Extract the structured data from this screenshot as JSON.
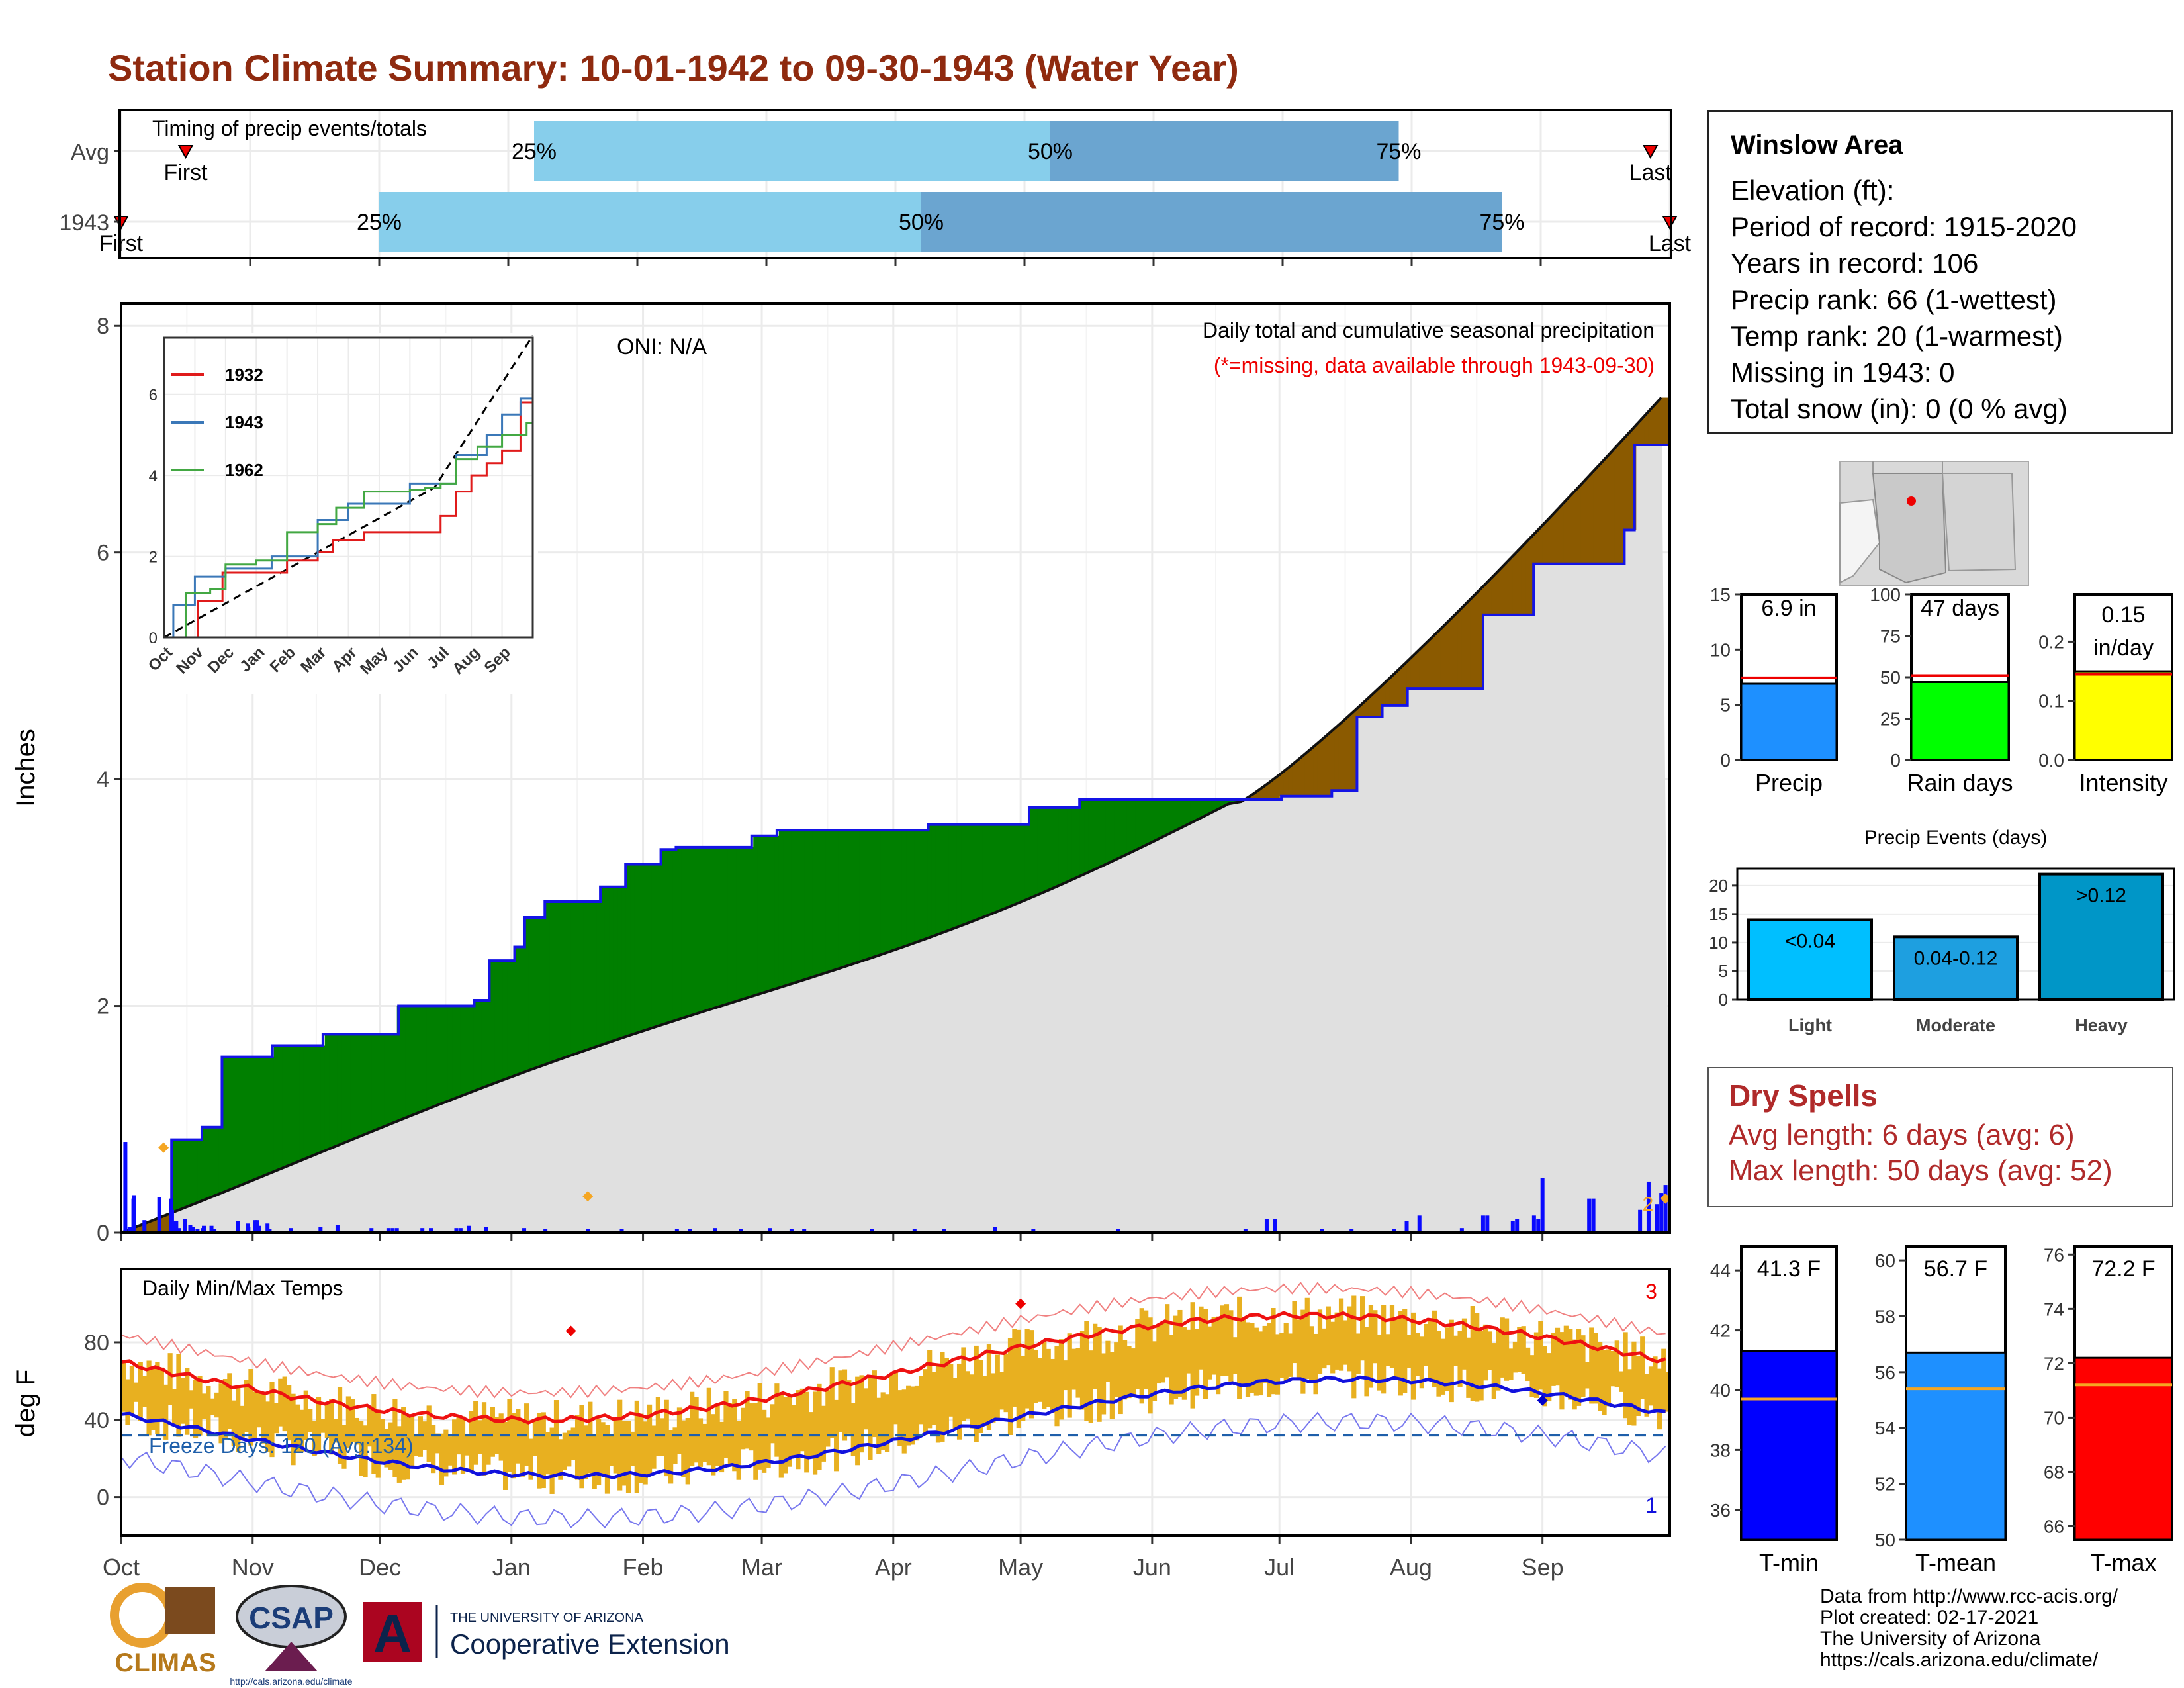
{
  "title": "Station Climate Summary: 10-01-1942 to 09-30-1943 (Water Year)",
  "timing": {
    "label": "Timing of precip events/totals",
    "rows": [
      {
        "name": "Avg",
        "first_month": 0.5,
        "p25": 3.2,
        "p50": 7.2,
        "p75": 9.9,
        "last_month": 11.85,
        "first_label": "First",
        "last_label": "Last"
      },
      {
        "name": "1943",
        "first_month": 0.0,
        "p25": 2.0,
        "p50": 6.2,
        "p75": 10.7,
        "last_month": 12.0,
        "first_label": "First",
        "last_label": "Last"
      }
    ],
    "pct_labels": [
      "25%",
      "50%",
      "75%"
    ]
  },
  "precip": {
    "ylabel": "Inches",
    "oni": "ONI: N/A",
    "subtitle": "Daily total and cumulative seasonal precipitation",
    "missing_note": "(*=missing, data available through 1943-09-30)",
    "yticks": [
      0,
      2,
      4,
      6,
      8
    ],
    "month_labels": [
      "Oct",
      "Nov",
      "Dec",
      "Jan",
      "Feb",
      "Mar",
      "Apr",
      "May",
      "Jun",
      "Jul",
      "Aug",
      "Sep"
    ],
    "cum_1943": [
      [
        0,
        0
      ],
      [
        1,
        0.82
      ],
      [
        1.3,
        0.82
      ],
      [
        1.6,
        0.93
      ],
      [
        2,
        1.55
      ],
      [
        3,
        1.65
      ],
      [
        3.8,
        1.65
      ],
      [
        4,
        1.75
      ],
      [
        5,
        1.75
      ],
      [
        5.5,
        2.0
      ],
      [
        6.6,
        2.0
      ],
      [
        7,
        2.05
      ],
      [
        7.3,
        2.4
      ],
      [
        7.8,
        2.52
      ],
      [
        8,
        2.78
      ],
      [
        8.4,
        2.92
      ],
      [
        9,
        2.92
      ],
      [
        9.5,
        3.05
      ],
      [
        10,
        3.25
      ],
      [
        10.7,
        3.38
      ],
      [
        11,
        3.4
      ],
      [
        12,
        3.4
      ],
      [
        12.5,
        3.5
      ],
      [
        13,
        3.55
      ],
      [
        15,
        3.55
      ],
      [
        16,
        3.6
      ],
      [
        18,
        3.75
      ],
      [
        19,
        3.82
      ],
      [
        20,
        3.82
      ],
      [
        21,
        3.82
      ],
      [
        22,
        3.82
      ],
      [
        23,
        3.85
      ],
      [
        24,
        3.9
      ],
      [
        24.5,
        4.55
      ],
      [
        25,
        4.65
      ],
      [
        25.5,
        4.8
      ],
      [
        27,
        5.45
      ],
      [
        28,
        5.9
      ],
      [
        29.5,
        5.9
      ],
      [
        29.8,
        6.2
      ],
      [
        30,
        6.95
      ],
      [
        30.7,
        7.0
      ]
    ],
    "normal_end": 7.45,
    "daily_bars": [
      [
        1,
        0.8
      ],
      [
        2,
        0.05
      ],
      [
        2.9,
        0.3
      ],
      [
        3,
        0.33
      ],
      [
        5.5,
        0.11
      ],
      [
        9,
        0.31
      ],
      [
        11.8,
        0.3
      ],
      [
        12,
        0.2
      ],
      [
        12.5,
        0.1
      ],
      [
        13,
        0.1
      ],
      [
        13.6,
        0.04
      ],
      [
        15,
        0.12
      ],
      [
        16.3,
        0.07
      ],
      [
        17,
        0.05
      ],
      [
        18,
        0.03
      ],
      [
        19.2,
        0.04
      ],
      [
        19.5,
        0.06
      ],
      [
        21.3,
        0.06
      ],
      [
        22,
        0.03
      ],
      [
        27.5,
        0.1
      ],
      [
        29.8,
        0.08
      ],
      [
        30,
        0.05
      ],
      [
        31.6,
        0.11
      ],
      [
        32,
        0.11
      ],
      [
        32.5,
        0.06
      ],
      [
        34.5,
        0.08
      ],
      [
        35,
        0.03
      ],
      [
        40,
        0.04
      ],
      [
        47,
        0.05
      ],
      [
        51,
        0.07
      ],
      [
        59,
        0.04
      ],
      [
        63,
        0.04
      ],
      [
        64,
        0.04
      ],
      [
        65,
        0.04
      ],
      [
        71,
        0.04
      ],
      [
        73,
        0.04
      ],
      [
        79,
        0.04
      ],
      [
        80,
        0.04
      ],
      [
        82,
        0.06
      ],
      [
        86,
        0.05
      ],
      [
        95,
        0.04
      ],
      [
        100,
        0.03
      ],
      [
        110,
        0.03
      ],
      [
        118,
        0.03
      ],
      [
        131,
        0.03
      ],
      [
        134,
        0.03
      ],
      [
        140,
        0.04
      ],
      [
        146,
        0.03
      ],
      [
        153,
        0.04
      ],
      [
        158,
        0.03
      ],
      [
        161,
        0.03
      ],
      [
        177,
        0.03
      ],
      [
        187,
        0.03
      ],
      [
        194,
        0.03
      ],
      [
        206,
        0.05
      ],
      [
        215,
        0.03
      ],
      [
        235,
        0.03
      ],
      [
        265,
        0.03
      ],
      [
        270,
        0.12
      ],
      [
        272,
        0.12
      ],
      [
        283,
        0.03
      ],
      [
        290,
        0.03
      ],
      [
        300,
        0.03
      ],
      [
        303,
        0.1
      ],
      [
        306,
        0.15
      ],
      [
        316,
        0.04
      ],
      [
        321,
        0.15
      ],
      [
        322,
        0.15
      ],
      [
        328,
        0.1
      ],
      [
        329,
        0.12
      ],
      [
        333,
        0.15
      ],
      [
        334,
        0.12
      ],
      [
        335,
        0.48
      ],
      [
        346,
        0.3
      ],
      [
        347,
        0.3
      ],
      [
        358,
        0.2
      ],
      [
        360,
        0.45
      ],
      [
        362,
        0.25
      ],
      [
        363,
        0.35
      ],
      [
        364,
        0.42
      ]
    ]
  },
  "inset": {
    "series": [
      {
        "name": "1932",
        "color": "#e01b1b"
      },
      {
        "name": "1943",
        "color": "#3b78b8"
      },
      {
        "name": "1962",
        "color": "#43a843"
      }
    ],
    "yticks": [
      0,
      2,
      4,
      6
    ],
    "month_labels": [
      "Oct",
      "Nov",
      "Dec",
      "Jan",
      "Feb",
      "Mar",
      "Apr",
      "May",
      "Jun",
      "Jul",
      "Aug",
      "Sep"
    ]
  },
  "temps": {
    "ylabel": "deg F",
    "label": "Daily Min/Max Temps",
    "freeze_label": "Freeze Days: 120 (Avg:134)",
    "count_top": "3",
    "count_bottom": "1",
    "yticks": [
      0,
      40,
      80
    ],
    "freeze_line": 32
  },
  "info": {
    "station": "Winslow Area",
    "lines": [
      "Elevation (ft):",
      "Period of record: 1915-2020",
      "Years in record: 106",
      "Precip rank: 66 (1-wettest)",
      "Temp rank: 20 (1-warmest)",
      "Missing in 1943: 0",
      "Total snow (in): 0 (0 % avg)"
    ]
  },
  "mini_bars": [
    {
      "name": "Precip",
      "value": 6.9,
      "avg": 7.45,
      "label": "6.9 in",
      "color": "#1e90ff",
      "ymax": 15,
      "yticks": [
        0,
        5,
        10,
        15
      ]
    },
    {
      "name": "Rain days",
      "value": 47,
      "avg": 51,
      "label": "47 days",
      "color": "#00ff00",
      "ymax": 100,
      "yticks": [
        0,
        25,
        50,
        75,
        100
      ]
    },
    {
      "name": "Intensity",
      "value": 0.15,
      "avg": 0.145,
      "label": "0.15\nin/day",
      "label1": "0.15",
      "label2": "in/day",
      "color": "#ffff00",
      "ymax": 0.28,
      "yticks": [
        0.0,
        0.1,
        0.2
      ]
    }
  ],
  "events": {
    "title": "Precip Events (days)",
    "categories": [
      "Light",
      "Moderate",
      "Heavy"
    ],
    "values": [
      14,
      11,
      22
    ],
    "labels": [
      "<0.04",
      "0.04-0.12",
      ">0.12"
    ],
    "colors": [
      "#00bfff",
      "#1e9fe0",
      "#0096c7"
    ],
    "yticks": [
      0,
      5,
      10,
      15,
      20
    ]
  },
  "dry_spells": {
    "title": "Dry Spells",
    "avg_line": "Avg length: 6 days (avg: 6)",
    "max_line": "Max length: 50 days (avg: 52)"
  },
  "temp_bars": [
    {
      "name": "T-min",
      "value": 41.3,
      "avg": 39.7,
      "label": "41.3 F",
      "color": "#0000ff",
      "ymin": 35,
      "ymax": 44.8,
      "yticks": [
        36,
        38,
        40,
        42,
        44
      ]
    },
    {
      "name": "T-mean",
      "value": 56.7,
      "avg": 55.4,
      "label": "56.7 F",
      "color": "#1e90ff",
      "ymin": 50,
      "ymax": 60.5,
      "yticks": [
        50,
        52,
        54,
        56,
        58,
        60
      ]
    },
    {
      "name": "T-max",
      "value": 72.2,
      "avg": 71.2,
      "label": "72.2 F",
      "color": "#ff0000",
      "ymin": 65.5,
      "ymax": 76.3,
      "yticks": [
        66,
        68,
        70,
        72,
        74,
        76
      ]
    }
  ],
  "credits": [
    "Data from http://www.rcc-acis.org/",
    "Plot created: 02-17-2021",
    "The University of Arizona",
    "https://cals.arizona.edu/climate/"
  ],
  "logos": {
    "climas": "CLIMAS",
    "csap": "CSAP",
    "csap_url": "http://cals.arizona.edu/climate",
    "ua_small": "THE UNIVERSITY OF ARIZONA",
    "ua_big": "Cooperative Extension"
  }
}
